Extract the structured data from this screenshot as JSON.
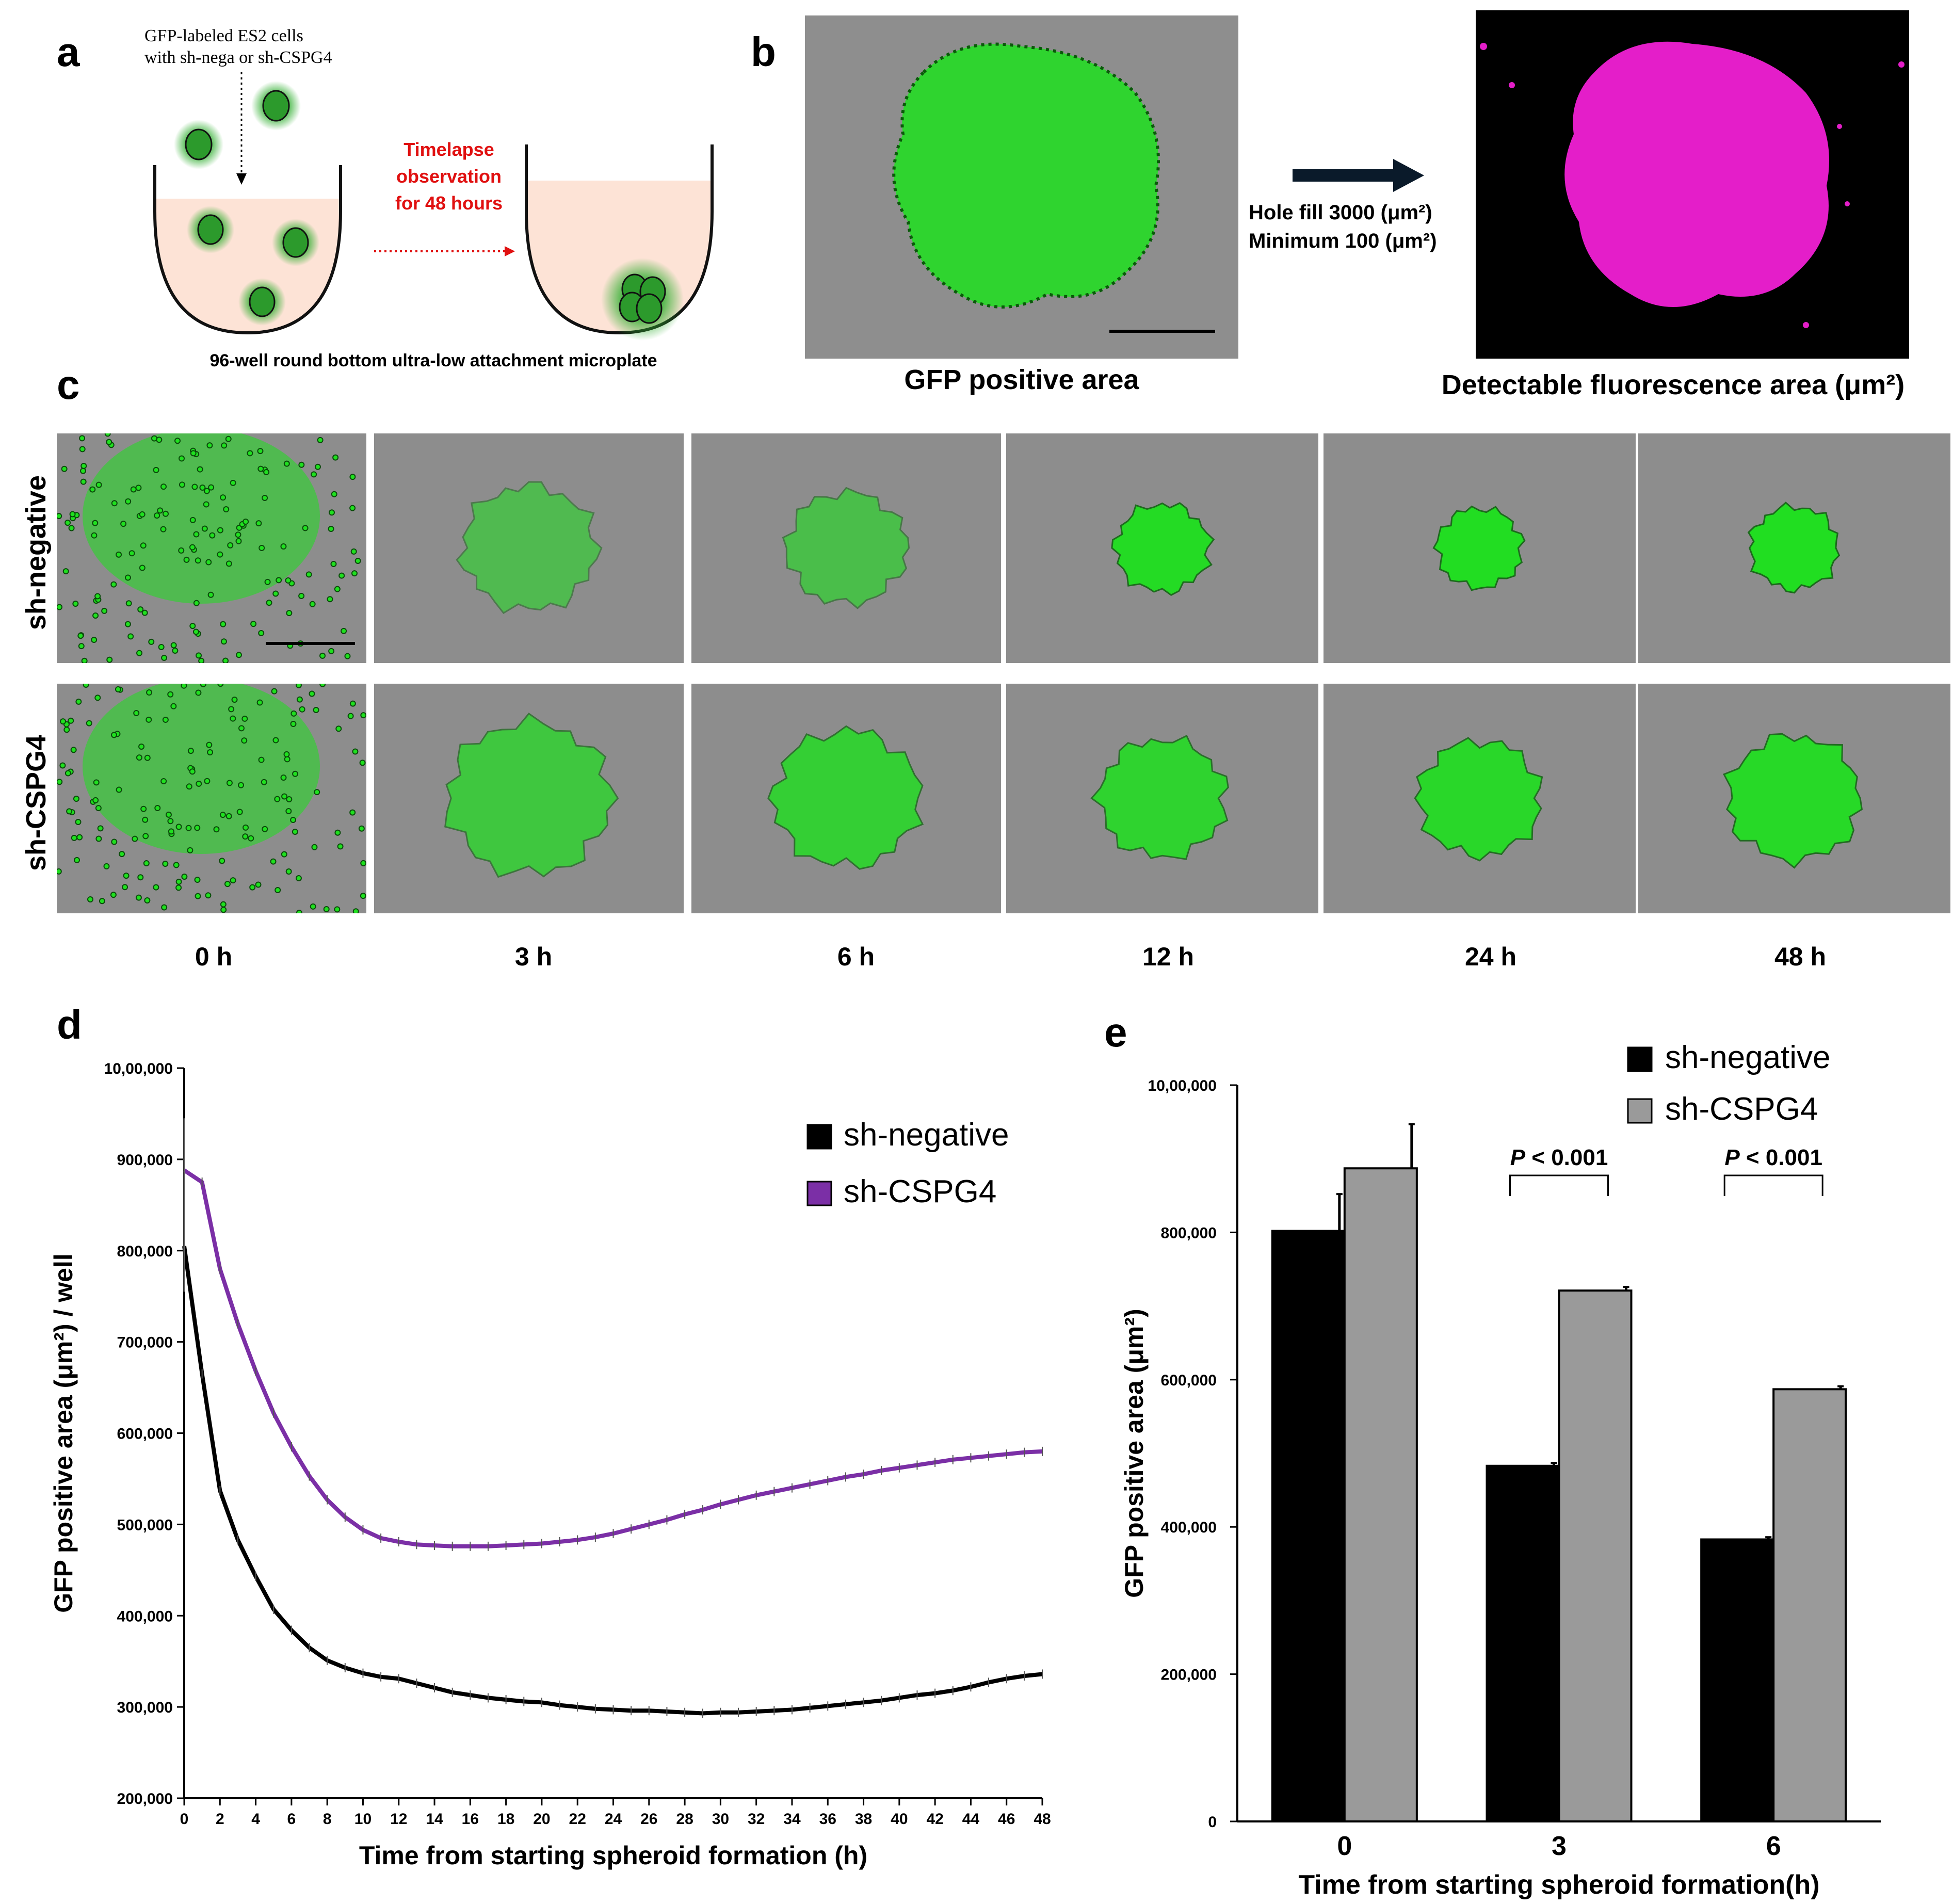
{
  "panels": {
    "a": {
      "letter": "a",
      "caption_line1": "GFP-labeled ES2 cells",
      "caption_line2": "with sh-nega or sh-CSPG4",
      "arrow_line1": "Timelapse",
      "arrow_line2": "observation",
      "arrow_line3": "for 48 hours",
      "bottom_caption": "96-well round bottom ultra-low attachment microplate"
    },
    "b": {
      "letter": "b",
      "left_caption": "GFP positive area",
      "process_line1": "Hole fill 3000 (μm²)",
      "process_line2": "Minimum 100 (μm²)",
      "right_caption": "Detectable fluorescence area (μm²)"
    },
    "c": {
      "letter": "c",
      "row_labels": [
        "sh-negative",
        "sh-CSPG4"
      ],
      "time_labels": [
        "0 h",
        "3 h",
        "6 h",
        "12 h",
        "24 h",
        "48 h"
      ]
    },
    "d": {
      "letter": "d"
    },
    "e": {
      "letter": "e"
    }
  },
  "colors": {
    "gfp": "#1fe01f",
    "magenta": "#e41ec9",
    "cspg4_line": "#7b2fa6",
    "arrow_red": "#e01010",
    "well_fill": "#fde3d6",
    "bar_gray": "#9a9a9a"
  },
  "chart_data": [
    {
      "id": "d",
      "type": "line",
      "title": "",
      "xlabel": "Time from starting spheroid formation (h)",
      "ylabel": "GFP positive area (μm²) / well",
      "xlim": [
        0,
        48
      ],
      "ylim": [
        200000,
        1000000
      ],
      "x_ticks": [
        0,
        2,
        4,
        6,
        8,
        10,
        12,
        14,
        16,
        18,
        20,
        22,
        24,
        26,
        28,
        30,
        32,
        34,
        36,
        38,
        40,
        42,
        44,
        46,
        48
      ],
      "y_ticks": [
        200000,
        300000,
        400000,
        500000,
        600000,
        700000,
        800000,
        900000,
        1000000
      ],
      "y_tick_labels": [
        "200,000",
        "300,000",
        "400,000",
        "500,000",
        "600,000",
        "700,000",
        "800,000",
        "900,000",
        "10,00,000"
      ],
      "legend": [
        "sh-negative",
        "sh-CSPG4"
      ],
      "legend_position": "top-right",
      "series": [
        {
          "name": "sh-negative",
          "x": [
            0,
            1,
            2,
            3,
            4,
            5,
            6,
            7,
            8,
            9,
            10,
            11,
            12,
            13,
            14,
            15,
            16,
            17,
            18,
            19,
            20,
            21,
            22,
            23,
            24,
            25,
            26,
            27,
            28,
            29,
            30,
            31,
            32,
            33,
            34,
            35,
            36,
            37,
            38,
            39,
            40,
            41,
            42,
            43,
            44,
            45,
            46,
            47,
            48
          ],
          "y": [
            805000,
            665000,
            537000,
            483000,
            443000,
            407000,
            384000,
            365000,
            351000,
            343000,
            337000,
            333000,
            331000,
            326000,
            321000,
            316000,
            313000,
            310000,
            308000,
            306000,
            305000,
            302000,
            300000,
            298000,
            297000,
            296000,
            296000,
            295000,
            294000,
            293000,
            294000,
            294000,
            295000,
            296000,
            297000,
            299000,
            301000,
            303000,
            305000,
            307000,
            310000,
            313000,
            315000,
            318000,
            322000,
            327000,
            331000,
            334000,
            336000
          ]
        },
        {
          "name": "sh-CSPG4",
          "x": [
            0,
            1,
            2,
            3,
            4,
            5,
            6,
            7,
            8,
            9,
            10,
            11,
            12,
            13,
            14,
            15,
            16,
            17,
            18,
            19,
            20,
            21,
            22,
            23,
            24,
            25,
            26,
            27,
            28,
            29,
            30,
            31,
            32,
            33,
            34,
            35,
            36,
            37,
            38,
            39,
            40,
            41,
            42,
            43,
            44,
            45,
            46,
            47,
            48
          ],
          "y": [
            888000,
            875000,
            780000,
            720000,
            668000,
            622000,
            585000,
            553000,
            527000,
            508000,
            494000,
            485000,
            481000,
            478000,
            477000,
            476000,
            476000,
            476000,
            477000,
            478000,
            479000,
            481000,
            483000,
            486000,
            490000,
            495000,
            500000,
            505000,
            511000,
            516000,
            522000,
            527000,
            532000,
            536000,
            540000,
            544000,
            548000,
            552000,
            555000,
            559000,
            562000,
            565000,
            568000,
            571000,
            573000,
            575000,
            577000,
            579000,
            580000
          ]
        }
      ]
    },
    {
      "id": "e",
      "type": "bar",
      "title": "",
      "xlabel": "Time from starting spheroid formation(h)",
      "ylabel": "GFP positive area (μm²)",
      "ylim": [
        0,
        1000000
      ],
      "y_ticks": [
        0,
        200000,
        400000,
        600000,
        800000,
        1000000
      ],
      "y_tick_labels": [
        "0",
        "200,000",
        "400,000",
        "600,000",
        "800,000",
        "10,00,000"
      ],
      "categories": [
        "0",
        "3",
        "6"
      ],
      "legend_position": "top-right",
      "series": [
        {
          "name": "sh-negative",
          "values": [
            802000,
            483000,
            383000
          ],
          "errors": [
            50000,
            4000,
            3000
          ]
        },
        {
          "name": "sh-CSPG4",
          "values": [
            887000,
            721000,
            587000
          ],
          "errors": [
            60000,
            5000,
            4000
          ]
        }
      ],
      "annotations": [
        {
          "label": "P < 0.001",
          "category": "3"
        },
        {
          "label": "P < 0.001",
          "category": "6"
        }
      ]
    }
  ]
}
